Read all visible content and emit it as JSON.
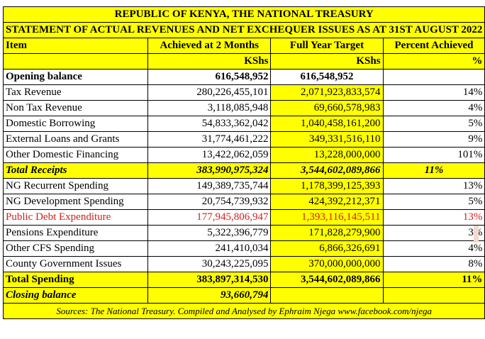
{
  "title": {
    "line1": "REPUBLIC OF KENYA, THE NATIONAL TREASURY",
    "line2": "STATEMENT OF ACTUAL REVENUES AND NET EXCHEQUER ISSUES AS AT 31ST AUGUST 2022"
  },
  "columns": {
    "item": "Item",
    "achieved": "Achieved at 2 Months",
    "target": "Full Year Target",
    "percent": "Percent Achieved",
    "unit_achieved": "KShs",
    "unit_target": "KShs",
    "unit_percent": "%"
  },
  "rows": [
    {
      "item": "Opening balance",
      "achieved": "616,548,952",
      "target": "616,548,952",
      "percent": ""
    },
    {
      "item": "Tax Revenue",
      "achieved": "280,226,455,101",
      "target": "2,071,923,833,574",
      "percent": "14%"
    },
    {
      "item": "Non Tax Revenue",
      "achieved": "3,118,085,948",
      "target": "69,660,578,983",
      "percent": "4%"
    },
    {
      "item": "Domestic Borrowing",
      "achieved": "54,833,362,042",
      "target": "1,040,458,161,200",
      "percent": "5%"
    },
    {
      "item": "External Loans and Grants",
      "achieved": "31,774,461,222",
      "target": "349,331,516,110",
      "percent": "9%"
    },
    {
      "item": "Other Domestic Financing",
      "achieved": "13,422,062,059",
      "target": "13,228,000,000",
      "percent": "101%"
    },
    {
      "item": "Total Receipts",
      "achieved": "383,990,975,324",
      "target": "3,544,602,089,866",
      "percent": "11%"
    },
    {
      "item": "NG Recurrent Spending",
      "achieved": "149,389,735,744",
      "target": "1,178,399,125,393",
      "percent": "13%"
    },
    {
      "item": "NG Development Spending",
      "achieved": "20,754,739,932",
      "target": "424,392,212,371",
      "percent": "5%"
    },
    {
      "item": "Public Debt Expenditure",
      "achieved": "177,945,806,947",
      "target": "1,393,116,145,511",
      "percent": "13%"
    },
    {
      "item": "Pensions Expenditure",
      "achieved": "5,322,396,779",
      "target": "171,828,279,900",
      "percent": "3%"
    },
    {
      "item": "Other CFS Spending",
      "achieved": "241,410,034",
      "target": "6,866,326,691",
      "percent": "4%"
    },
    {
      "item": "County Government Issues",
      "achieved": "30,243,225,095",
      "target": "370,000,000,000",
      "percent": "8%"
    },
    {
      "item": "Total Spending",
      "achieved": "383,897,314,530",
      "target": "3,544,602,089,866",
      "percent": "11%"
    },
    {
      "item": "Closing balance",
      "achieved": "93,660,794",
      "target": "",
      "percent": ""
    }
  ],
  "source": "Sources: The National Treasury. Compiled and Analysed by Ephraim Njega www.facebook.com/njega",
  "colors": {
    "highlight": "#ffff00",
    "red_text": "#d81b1b",
    "border": "#000000"
  }
}
